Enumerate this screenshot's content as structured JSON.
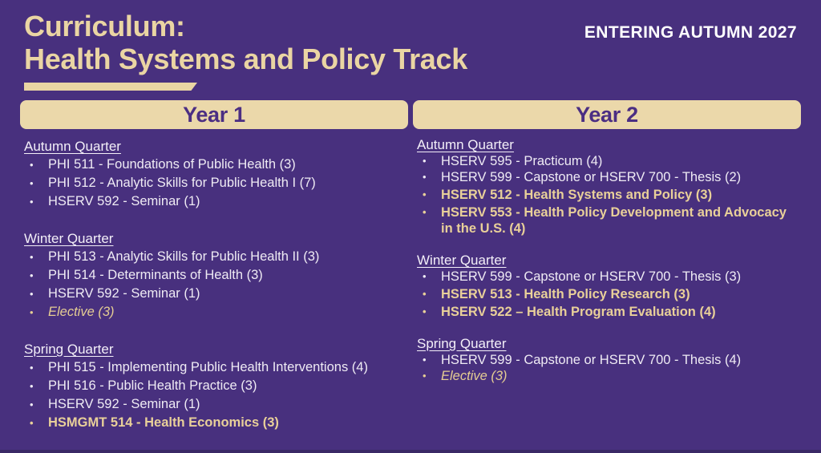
{
  "header": {
    "title_line1": "Curriculum:",
    "title_line2": "Health Systems and Policy Track",
    "top_right_label": "ENTERING AUTUMN 2027"
  },
  "icons": {
    "bullet_glyph": "•"
  },
  "colors": {
    "background_purple": "#48307E",
    "accent_gold": "#EAD5A3",
    "year_bar_fill": "#EBD8AA",
    "year_bar_text": "#4B2E83",
    "body_text": "#EFEBF4",
    "highlight_gold": "#E9D099"
  },
  "columns": [
    {
      "header": "Year 1",
      "sections": [
        {
          "quarter": "Autumn Quarter",
          "courses": [
            {
              "text": "PHI 511 - Foundations of Public Health (3)",
              "style": "normal"
            },
            {
              "text": "PHI 512 - Analytic Skills for Public Health I (7)",
              "style": "normal"
            },
            {
              "text": "HSERV 592 - Seminar (1)",
              "style": "normal"
            }
          ]
        },
        {
          "quarter": "Winter Quarter",
          "courses": [
            {
              "text": "PHI 513 - Analytic Skills for Public Health II (3)",
              "style": "normal"
            },
            {
              "text": "PHI 514 - Determinants of Health (3)",
              "style": "normal"
            },
            {
              "text": "HSERV 592 - Seminar (1)",
              "style": "normal"
            },
            {
              "text": "Elective (3)",
              "style": "elective"
            }
          ]
        },
        {
          "quarter": "Spring Quarter",
          "courses": [
            {
              "text": "PHI 515 - Implementing Public Health Interventions (4)",
              "style": "normal"
            },
            {
              "text": "PHI 516 - Public Health Practice (3)",
              "style": "normal"
            },
            {
              "text": "HSERV 592 - Seminar (1)",
              "style": "normal"
            },
            {
              "text": "HSMGMT 514 - Health Economics (3)",
              "style": "highlight"
            }
          ]
        }
      ]
    },
    {
      "header": "Year 2",
      "sections": [
        {
          "quarter": "Autumn Quarter",
          "courses": [
            {
              "text": "HSERV 595 - Practicum (4)",
              "style": "normal"
            },
            {
              "text": "HSERV 599 - Capstone or HSERV 700 - Thesis (2)",
              "style": "normal"
            },
            {
              "text": "HSERV 512 - Health Systems and Policy (3)",
              "style": "highlight"
            },
            {
              "text": "HSERV 553 - Health Policy Development and Advocacy in the U.S. (4)",
              "style": "highlight"
            }
          ]
        },
        {
          "quarter": "Winter Quarter",
          "courses": [
            {
              "text": "HSERV 599 - Capstone or HSERV 700 - Thesis (3)",
              "style": "normal"
            },
            {
              "text": "HSERV 513 - Health Policy Research (3)",
              "style": "highlight"
            },
            {
              "text": "HSERV 522 – Health Program Evaluation (4)",
              "style": "highlight"
            }
          ]
        },
        {
          "quarter": "Spring Quarter",
          "courses": [
            {
              "text": "HSERV 599 - Capstone or HSERV 700 - Thesis (4)",
              "style": "normal"
            },
            {
              "text": "Elective (3)",
              "style": "elective"
            }
          ]
        }
      ]
    }
  ]
}
